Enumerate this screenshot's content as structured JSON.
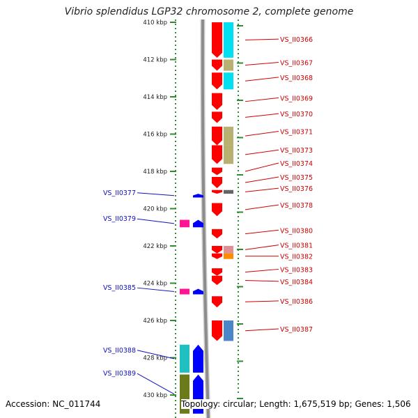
{
  "title": "Vibrio splendidus LGP32 chromosome 2, complete genome",
  "footer": {
    "accession": "Accession: NC_011744",
    "summary": "Topology: circular; Length: 1,675,519 bp; Genes: 1,506"
  },
  "colors": {
    "forward_gene": "#ff0000",
    "reverse_gene": "#0000ff",
    "forward_label": "#cc0000",
    "reverse_label": "#1010c0",
    "scale_dots": "#2e8b2e",
    "backbone": "#8c8c8c"
  },
  "scale": {
    "unit": "kbp",
    "start_kbp": 410,
    "ticks_kbp": [
      410,
      412,
      414,
      416,
      418,
      420,
      422,
      424,
      426,
      428,
      430
    ],
    "tick_labels": [
      "410 kbp",
      "412 kbp",
      "414 kbp",
      "416 kbp",
      "418 kbp",
      "420 kbp",
      "422 kbp",
      "424 kbp",
      "426 kbp",
      "428 kbp",
      "430 kbp"
    ]
  },
  "forward_genes": [
    {
      "label": "VS_II0366",
      "start": 410.0,
      "end": 411.9,
      "cog": "#00e0f0"
    },
    {
      "label": "VS_II0367",
      "start": 412.0,
      "end": 412.6,
      "cog": "#b8b070"
    },
    {
      "label": "VS_II0368",
      "start": 412.7,
      "end": 413.6,
      "cog": "#00e0f0"
    },
    {
      "label": "VS_II0369",
      "start": 413.8,
      "end": 414.7,
      "cog": ""
    },
    {
      "label": "VS_II0370",
      "start": 414.8,
      "end": 415.4,
      "cog": ""
    },
    {
      "label": "VS_II0371",
      "start": 415.6,
      "end": 416.6,
      "cog": "#b8b070"
    },
    {
      "label": "VS_II0373",
      "start": 416.6,
      "end": 417.6,
      "cog": "#b8b070"
    },
    {
      "label": "VS_II0374",
      "start": 417.8,
      "end": 418.2,
      "cog": ""
    },
    {
      "label": "VS_II0375",
      "start": 418.3,
      "end": 418.9,
      "cog": ""
    },
    {
      "label": "VS_II0376",
      "start": 419.0,
      "end": 419.2,
      "cog": "#666666"
    },
    {
      "label": "VS_II0378",
      "start": 419.7,
      "end": 420.4,
      "cog": ""
    },
    {
      "label": "VS_II0380",
      "start": 421.1,
      "end": 421.6,
      "cog": ""
    },
    {
      "label": "VS_II0381",
      "start": 422.0,
      "end": 422.4,
      "cog": "#e09090"
    },
    {
      "label": "VS_II0382",
      "start": 422.4,
      "end": 422.7,
      "cog": "#ff8c00"
    },
    {
      "label": "VS_II0383",
      "start": 423.2,
      "end": 423.6,
      "cog": ""
    },
    {
      "label": "VS_II0384",
      "start": 423.6,
      "end": 424.1,
      "cog": ""
    },
    {
      "label": "VS_II0386",
      "start": 424.7,
      "end": 425.3,
      "cog": ""
    },
    {
      "label": "VS_II0387",
      "start": 426.0,
      "end": 427.1,
      "cog": "#4a86c8"
    }
  ],
  "forward_labels": [
    {
      "text": "VS_II0366",
      "kbp": 410.9
    },
    {
      "text": "VS_II0367",
      "kbp": 412.15
    },
    {
      "text": "VS_II0368",
      "kbp": 412.95
    },
    {
      "text": "VS_II0369",
      "kbp": 414.05
    },
    {
      "text": "VS_II0370",
      "kbp": 414.9
    },
    {
      "text": "VS_II0371",
      "kbp": 415.85
    },
    {
      "text": "VS_II0373",
      "kbp": 416.85
    },
    {
      "text": "VS_II0374",
      "kbp": 417.55
    },
    {
      "text": "VS_II0375",
      "kbp": 418.3
    },
    {
      "text": "VS_II0376",
      "kbp": 418.9
    },
    {
      "text": "VS_II0378",
      "kbp": 419.8
    },
    {
      "text": "VS_II0380",
      "kbp": 421.15
    },
    {
      "text": "VS_II0381",
      "kbp": 421.95
    },
    {
      "text": "VS_II0382",
      "kbp": 422.55
    },
    {
      "text": "VS_II0383",
      "kbp": 423.25
    },
    {
      "text": "VS_II0384",
      "kbp": 423.9
    },
    {
      "text": "VS_II0386",
      "kbp": 424.95
    },
    {
      "text": "VS_II0387",
      "kbp": 426.45
    }
  ],
  "reverse_genes": [
    {
      "label": "VS_II0377",
      "start": 419.2,
      "end": 419.4,
      "cog": ""
    },
    {
      "label": "VS_II0379",
      "start": 420.6,
      "end": 421.0,
      "cog": "#ff1493"
    },
    {
      "label": "VS_II0385",
      "start": 424.3,
      "end": 424.6,
      "cog": "#ff1493"
    },
    {
      "label": "VS_II0388",
      "start": 427.3,
      "end": 428.8,
      "cog": "#20c0c0"
    },
    {
      "label": "VS_II0389",
      "start": 428.9,
      "end": 431.0,
      "cog": "#6b7a1a"
    }
  ],
  "reverse_labels": [
    {
      "text": "VS_II0377",
      "kbp": 419.15
    },
    {
      "text": "VS_II0379",
      "kbp": 420.55
    },
    {
      "text": "VS_II0385",
      "kbp": 424.25
    },
    {
      "text": "VS_II0388",
      "kbp": 427.6
    },
    {
      "text": "VS_II0389",
      "kbp": 428.85
    }
  ]
}
